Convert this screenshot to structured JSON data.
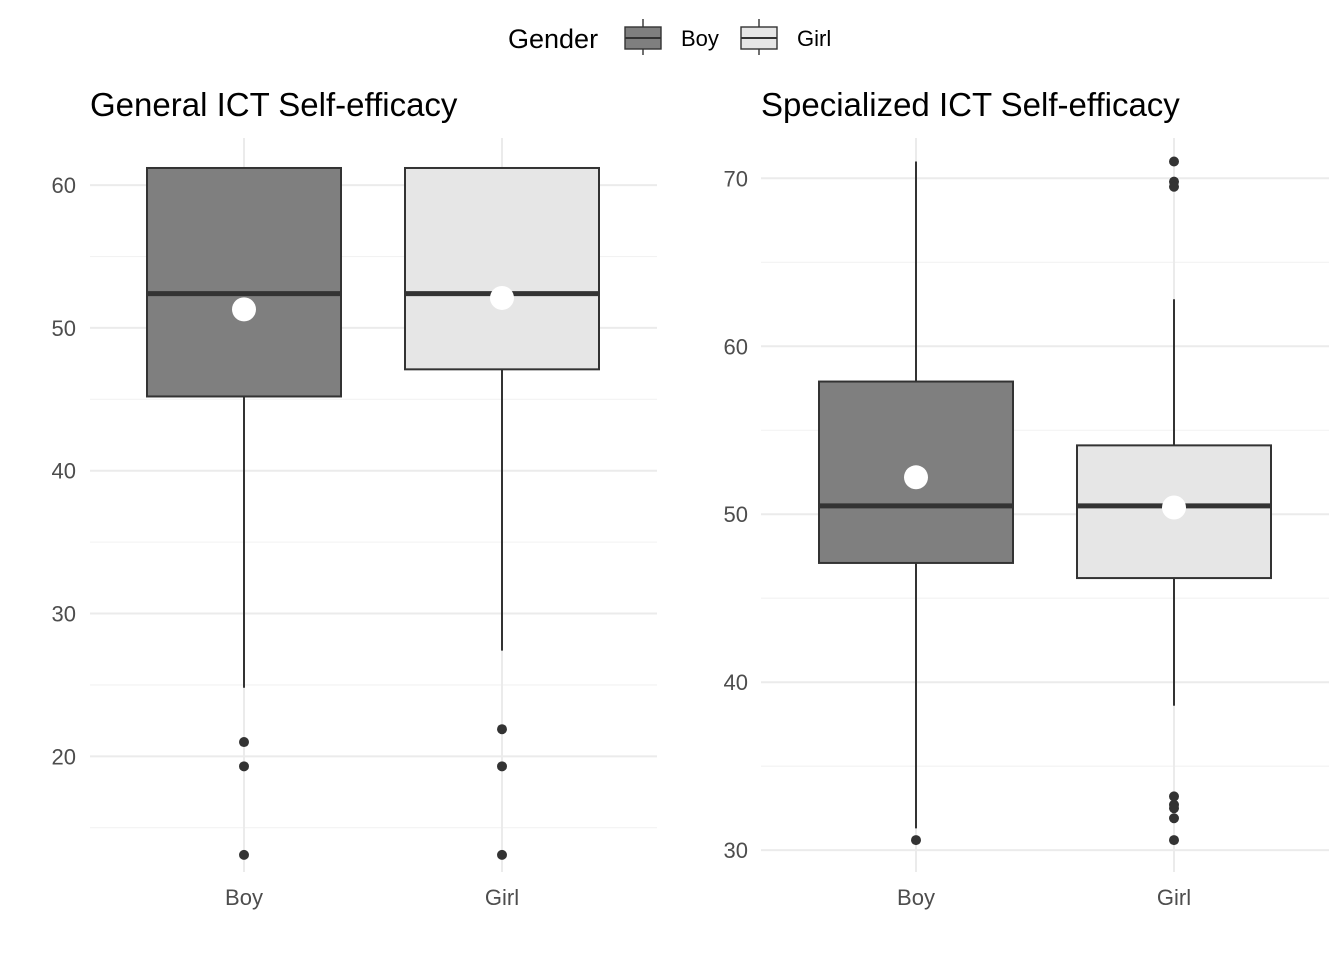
{
  "legend": {
    "title": "Gender",
    "entries": [
      {
        "label": "Boy",
        "fill": "#7f7f7f"
      },
      {
        "label": "Girl",
        "fill": "#e6e6e6"
      }
    ]
  },
  "colors": {
    "box_stroke": "#333333",
    "median": "#333333",
    "mean_point": "#ffffff",
    "outlier": "#333333",
    "grid_major": "#ebebeb",
    "grid_minor": "#f2f2f2"
  },
  "chart_data": [
    {
      "type": "box",
      "title": "General ICT Self-efficacy",
      "xlabel": "",
      "ylabel": "",
      "categories": [
        "Boy",
        "Girl"
      ],
      "ylim": [
        11.9,
        63.3
      ],
      "yticks": [
        20,
        30,
        40,
        50,
        60
      ],
      "grid": true,
      "boxes": [
        {
          "category": "Boy",
          "lower_whisker": 24.8,
          "q1": 45.2,
          "median": 52.4,
          "q3": 61.2,
          "upper_whisker": 61.2,
          "mean": 51.3,
          "outliers": [
            21.0,
            19.3,
            13.1
          ]
        },
        {
          "category": "Girl",
          "lower_whisker": 27.4,
          "q1": 47.1,
          "median": 52.4,
          "q3": 61.2,
          "upper_whisker": 61.2,
          "mean": 52.1,
          "outliers": [
            21.9,
            19.3,
            13.1
          ]
        }
      ]
    },
    {
      "type": "box",
      "title": "Specialized ICT Self-efficacy",
      "xlabel": "",
      "ylabel": "",
      "categories": [
        "Boy",
        "Girl"
      ],
      "ylim": [
        28.7,
        72.4
      ],
      "yticks": [
        30,
        40,
        50,
        60,
        70
      ],
      "grid": true,
      "boxes": [
        {
          "category": "Boy",
          "lower_whisker": 31.3,
          "q1": 47.1,
          "median": 50.5,
          "q3": 57.9,
          "upper_whisker": 71.0,
          "mean": 52.2,
          "outliers": [
            30.6
          ]
        },
        {
          "category": "Girl",
          "lower_whisker": 38.6,
          "q1": 46.2,
          "median": 50.5,
          "q3": 54.1,
          "upper_whisker": 62.8,
          "mean": 50.4,
          "outliers": [
            71.0,
            69.8,
            69.5,
            33.2,
            32.7,
            32.5,
            31.9,
            30.6
          ]
        }
      ]
    }
  ]
}
